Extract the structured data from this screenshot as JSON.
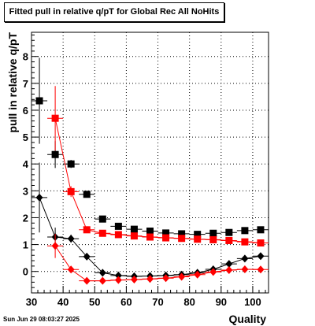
{
  "chart_data": {
    "type": "scatter",
    "title": "Fitted pull in relative q/pT for Global Rec All NoHits",
    "xlabel": "Quality",
    "ylabel": "pull in relative q/pT",
    "xlim": [
      30,
      105
    ],
    "ylim": [
      -0.8,
      8.9
    ],
    "x_ticks": [
      30,
      40,
      50,
      60,
      70,
      80,
      90,
      100
    ],
    "y_ticks": [
      0,
      1,
      2,
      3,
      4,
      5,
      6,
      7,
      8
    ],
    "grid": true,
    "colors": {
      "black": "#000000",
      "red": "#ff0000"
    },
    "series": [
      {
        "marker": "square",
        "color": "#000000",
        "connected": false,
        "points": [
          {
            "x": 32.5,
            "y": 6.35,
            "yerr": 1.6
          },
          {
            "x": 37.5,
            "y": 4.35,
            "yerr": 0.5
          },
          {
            "x": 42.5,
            "y": 4.0,
            "yerr": 0.15
          },
          {
            "x": 47.5,
            "y": 2.87,
            "yerr": 0.08
          },
          {
            "x": 52.5,
            "y": 1.95,
            "yerr": 0.05
          },
          {
            "x": 57.5,
            "y": 1.68,
            "yerr": 0.05
          },
          {
            "x": 62.5,
            "y": 1.57,
            "yerr": 0.04
          },
          {
            "x": 67.5,
            "y": 1.5,
            "yerr": 0.04
          },
          {
            "x": 72.5,
            "y": 1.43,
            "yerr": 0.04
          },
          {
            "x": 77.5,
            "y": 1.4,
            "yerr": 0.04
          },
          {
            "x": 82.5,
            "y": 1.38,
            "yerr": 0.04
          },
          {
            "x": 87.5,
            "y": 1.42,
            "yerr": 0.04
          },
          {
            "x": 92.5,
            "y": 1.45,
            "yerr": 0.04
          },
          {
            "x": 97.5,
            "y": 1.52,
            "yerr": 0.04
          },
          {
            "x": 102.5,
            "y": 1.55,
            "yerr": 0.04
          }
        ]
      },
      {
        "marker": "square",
        "color": "#ff0000",
        "connected": true,
        "points": [
          {
            "x": 37.5,
            "y": 5.7,
            "yerr": 1.2
          },
          {
            "x": 42.5,
            "y": 2.97,
            "yerr": 0.2
          },
          {
            "x": 47.5,
            "y": 1.55,
            "yerr": 0.08
          },
          {
            "x": 52.5,
            "y": 1.42,
            "yerr": 0.05
          },
          {
            "x": 57.5,
            "y": 1.37,
            "yerr": 0.05
          },
          {
            "x": 62.5,
            "y": 1.32,
            "yerr": 0.04
          },
          {
            "x": 67.5,
            "y": 1.28,
            "yerr": 0.04
          },
          {
            "x": 72.5,
            "y": 1.25,
            "yerr": 0.04
          },
          {
            "x": 77.5,
            "y": 1.23,
            "yerr": 0.04
          },
          {
            "x": 82.5,
            "y": 1.2,
            "yerr": 0.04
          },
          {
            "x": 87.5,
            "y": 1.18,
            "yerr": 0.04
          },
          {
            "x": 92.5,
            "y": 1.15,
            "yerr": 0.04
          },
          {
            "x": 97.5,
            "y": 1.1,
            "yerr": 0.04
          },
          {
            "x": 102.5,
            "y": 1.06,
            "yerr": 0.04
          }
        ]
      },
      {
        "marker": "diamond",
        "color": "#000000",
        "connected": true,
        "points": [
          {
            "x": 32.5,
            "y": 2.75,
            "yerr": 1.3
          },
          {
            "x": 37.5,
            "y": 1.28,
            "yerr": 0.35
          },
          {
            "x": 42.5,
            "y": 1.22,
            "yerr": 0.15
          },
          {
            "x": 47.5,
            "y": 0.55,
            "yerr": 0.05
          },
          {
            "x": 52.5,
            "y": -0.05,
            "yerr": 0.04
          },
          {
            "x": 57.5,
            "y": -0.15,
            "yerr": 0.04
          },
          {
            "x": 62.5,
            "y": -0.18,
            "yerr": 0.04
          },
          {
            "x": 67.5,
            "y": -0.17,
            "yerr": 0.04
          },
          {
            "x": 72.5,
            "y": -0.15,
            "yerr": 0.04
          },
          {
            "x": 77.5,
            "y": -0.12,
            "yerr": 0.04
          },
          {
            "x": 82.5,
            "y": -0.05,
            "yerr": 0.04
          },
          {
            "x": 87.5,
            "y": 0.08,
            "yerr": 0.04
          },
          {
            "x": 92.5,
            "y": 0.28,
            "yerr": 0.04
          },
          {
            "x": 97.5,
            "y": 0.48,
            "yerr": 0.04
          },
          {
            "x": 102.5,
            "y": 0.57,
            "yerr": 0.04
          }
        ]
      },
      {
        "marker": "diamond",
        "color": "#ff0000",
        "connected": true,
        "points": [
          {
            "x": 37.5,
            "y": 0.95,
            "yerr": 0.45
          },
          {
            "x": 42.5,
            "y": 0.07,
            "yerr": 0.12
          },
          {
            "x": 47.5,
            "y": -0.35,
            "yerr": 0.05
          },
          {
            "x": 52.5,
            "y": -0.35,
            "yerr": 0.04
          },
          {
            "x": 57.5,
            "y": -0.32,
            "yerr": 0.04
          },
          {
            "x": 62.5,
            "y": -0.3,
            "yerr": 0.04
          },
          {
            "x": 67.5,
            "y": -0.28,
            "yerr": 0.04
          },
          {
            "x": 72.5,
            "y": -0.25,
            "yerr": 0.04
          },
          {
            "x": 77.5,
            "y": -0.2,
            "yerr": 0.04
          },
          {
            "x": 82.5,
            "y": -0.12,
            "yerr": 0.04
          },
          {
            "x": 87.5,
            "y": -0.02,
            "yerr": 0.04
          },
          {
            "x": 92.5,
            "y": 0.05,
            "yerr": 0.04
          },
          {
            "x": 97.5,
            "y": 0.08,
            "yerr": 0.04
          },
          {
            "x": 102.5,
            "y": 0.07,
            "yerr": 0.04
          }
        ]
      }
    ]
  },
  "footer": {
    "timestamp": "Sun Jun 29 08:03:27 2025"
  }
}
